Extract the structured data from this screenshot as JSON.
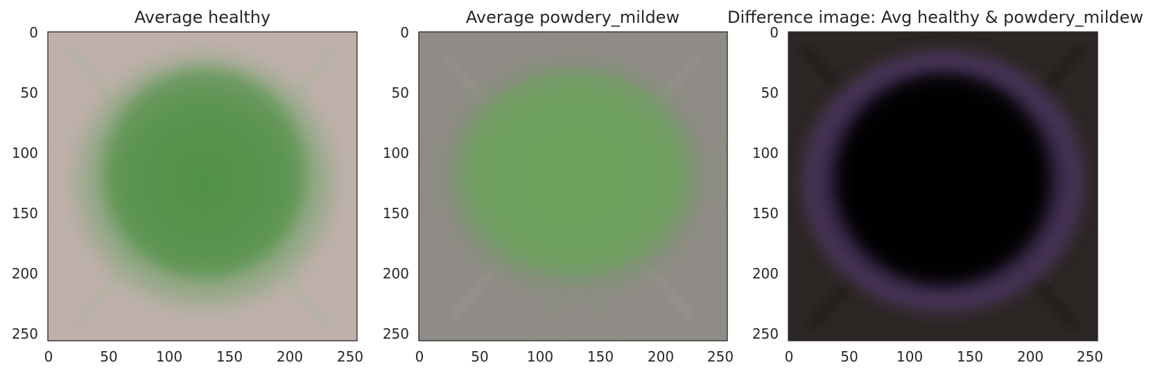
{
  "figure": {
    "panels": [
      {
        "title": "Average healthy",
        "kind": "healthy",
        "x_ticks": [
          "0",
          "50",
          "100",
          "150",
          "200",
          "250"
        ],
        "y_ticks": [
          "0",
          "50",
          "100",
          "150",
          "200",
          "250"
        ]
      },
      {
        "title": "Average powdery_mildew",
        "kind": "mildew",
        "x_ticks": [
          "0",
          "50",
          "100",
          "150",
          "200",
          "250"
        ],
        "y_ticks": [
          "0",
          "50",
          "100",
          "150",
          "200",
          "250"
        ]
      },
      {
        "title": "Difference image: Avg healthy & powdery_mildew",
        "kind": "difference",
        "x_ticks": [
          "0",
          "50",
          "100",
          "150",
          "200",
          "250"
        ],
        "y_ticks": [
          "0",
          "50",
          "100",
          "150",
          "200",
          "250"
        ]
      }
    ],
    "image_extent": [
      0,
      256
    ],
    "axis_tick_values": [
      0,
      50,
      100,
      150,
      200,
      250
    ],
    "colors": {
      "healthy_background": "#bfb0ab",
      "healthy_leaf": "#5f9a55",
      "mildew_background": "#8f8b86",
      "mildew_leaf": "#6aa35c",
      "difference_background": "#2c2624",
      "difference_center": "#050307",
      "difference_rim": "#5a3c6a",
      "axis_frame": "#262626"
    }
  }
}
